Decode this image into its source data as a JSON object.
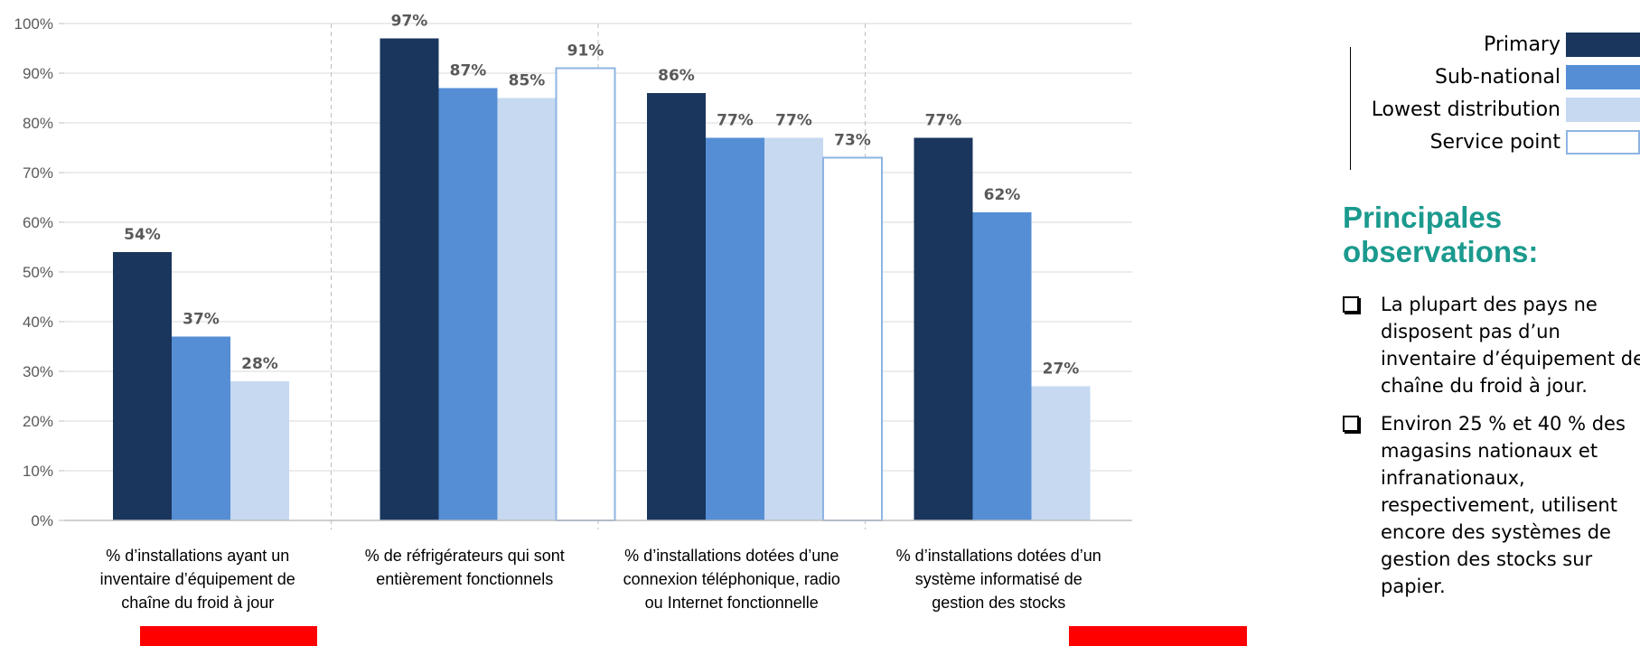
{
  "chart_data": {
    "type": "bar",
    "categories": [
      "% d’installations ayant un inventaire d’équipement de chaîne du froid à jour",
      "% de réfrigérateurs qui sont entièrement fonctionnels",
      "% d’installations dotées d’une connexion téléphonique, radio ou Internet fonctionnelle",
      "% d’installations dotées d’un système informatisé de gestion des stocks"
    ],
    "category_lines": [
      [
        "% d’installations ayant un",
        "inventaire d’équipement de",
        "chaîne du froid à jour"
      ],
      [
        "% de réfrigérateurs qui sont",
        "entièrement fonctionnels"
      ],
      [
        "% d’installations dotées d’une",
        "connexion téléphonique, radio",
        "ou Internet fonctionnelle"
      ],
      [
        "% d’installations dotées d’un",
        "système informatisé de",
        "gestion des stocks"
      ]
    ],
    "series": [
      {
        "name": "Primary",
        "values": [
          54,
          97,
          86,
          77
        ],
        "labels": [
          "54%",
          "97%",
          "86%",
          "77%"
        ],
        "color": "#1a365d"
      },
      {
        "name": "Sub-national",
        "values": [
          37,
          87,
          77,
          62
        ],
        "labels": [
          "37%",
          "87%",
          "77%",
          "62%"
        ],
        "color": "#558ed5"
      },
      {
        "name": "Lowest distribution",
        "values": [
          28,
          85,
          77,
          27
        ],
        "labels": [
          "28%",
          "85%",
          "77%",
          "27%"
        ],
        "color": "#c6d9f1"
      },
      {
        "name": "Service point",
        "values": [
          null,
          91,
          73,
          null
        ],
        "labels": [
          null,
          "91%",
          "73%",
          null
        ],
        "color": "#ffffff",
        "border": "#8eb4e3"
      }
    ],
    "ylim": [
      0,
      100
    ],
    "yticks": [
      "0%",
      "10%",
      "20%",
      "30%",
      "40%",
      "50%",
      "60%",
      "70%",
      "80%",
      "90%",
      "100%"
    ],
    "grid": true,
    "legend_position": "top-right",
    "title": "",
    "xlabel": "",
    "ylabel": ""
  },
  "observations": {
    "title": "Principales observations:",
    "items": [
      "La plupart des pays ne disposent pas d’un inventaire d’équipement de chaîne du froid à jour.",
      "Environ 25 % et 40 % des magasins nationaux et infranationaux, respectivement, utilisent encore des systèmes de gestion des stocks sur papier."
    ]
  },
  "highlight_color": "#ff0000"
}
